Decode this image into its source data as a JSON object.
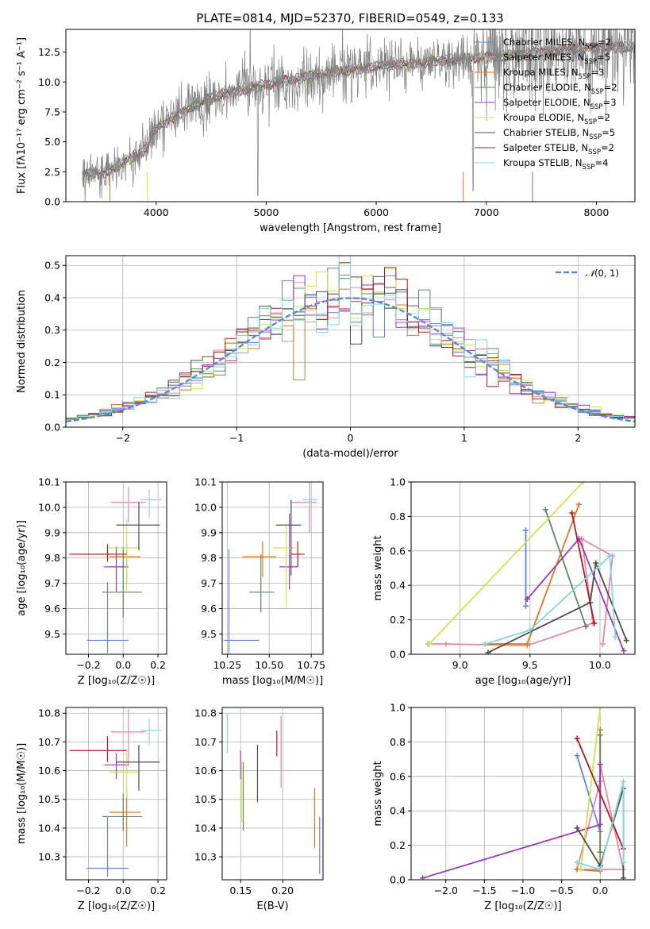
{
  "figure": {
    "title": "PLATE=0814, MJD=52370, FIBERID=0549, z=0.133"
  },
  "models": [
    {
      "label": "Chabrier MILES, N$_{SSP}$=2",
      "legend": "Chabrier MILES, N",
      "sub": "SSP",
      "eq": "=2",
      "color": "#5e87d6"
    },
    {
      "label": "Salpeter MILES, N$_{SSP}$=5",
      "legend": "Salpeter MILES, N",
      "sub": "SSP",
      "eq": "=5",
      "color": "#ea86a8"
    },
    {
      "label": "Kroupa MILES, N$_{SSP}$=3",
      "legend": "Kroupa MILES, N",
      "sub": "SSP",
      "eq": "=3",
      "color": "#de7722"
    },
    {
      "label": "Chabrier ELODIE, N$_{SSP}$=2",
      "legend": "Chabrier ELODIE, N",
      "sub": "SSP",
      "eq": "=2",
      "color": "#5a8a5c"
    },
    {
      "label": "Salpeter ELODIE, N$_{SSP}$=3",
      "legend": "Salpeter ELODIE, N",
      "sub": "SSP",
      "eq": "=3",
      "color": "#9b36b8"
    },
    {
      "label": "Kroupa ELODIE, N$_{SSP}$=2",
      "legend": "Kroupa ELODIE, N",
      "sub": "SSP",
      "eq": "=2",
      "color": "#cde54c"
    },
    {
      "label": "Chabrier STELIB, N$_{SSP}$=5",
      "legend": "Chabrier STELIB, N",
      "sub": "SSP",
      "eq": "=5",
      "color": "#4d4d4d"
    },
    {
      "label": "Salpeter STELIB, N$_{SSP}$=2",
      "legend": "Salpeter STELIB, N",
      "sub": "SSP",
      "eq": "=2",
      "color": "#b0191e"
    },
    {
      "label": "Kroupa STELIB, N$_{SSP}$=4",
      "legend": "Kroupa STELIB, N",
      "sub": "SSP",
      "eq": "=4",
      "color": "#7fd9df"
    }
  ],
  "chart_data": [
    {
      "id": "spectrum",
      "type": "line",
      "xlabel": "wavelength [Angstrom, rest frame]",
      "ylabel": "Flux [fλ10⁻¹⁷ erg cm⁻² s⁻¹ A⁻¹]",
      "xlim": [
        3180,
        8350
      ],
      "ylim": [
        0,
        14.4
      ],
      "xticks": [
        4000,
        5000,
        6000,
        7000,
        8000
      ],
      "yticks": [
        0.0,
        2.5,
        5.0,
        7.5,
        10.0,
        12.5
      ],
      "data_color": "#808080",
      "continuum": {
        "x": [
          3330,
          3550,
          3700,
          3900,
          4000,
          4300,
          4600,
          5000,
          5500,
          6000,
          6500,
          7000,
          7500,
          8000
        ],
        "y": [
          2.3,
          2.5,
          3.3,
          4.3,
          6.2,
          7.8,
          9.0,
          9.8,
          10.7,
          11.3,
          11.7,
          12.1,
          12.5,
          12.9
        ]
      },
      "legend_position": "upper right",
      "grid": false
    },
    {
      "id": "residual-histogram",
      "type": "histogram",
      "xlabel": "(data-model)/error",
      "ylabel": "Normed distribution",
      "xlim": [
        -2.5,
        2.5
      ],
      "ylim": [
        0,
        0.53
      ],
      "xticks": [
        -2,
        -1,
        0,
        1,
        2
      ],
      "yticks": [
        0.0,
        0.1,
        0.2,
        0.3,
        0.4,
        0.5
      ],
      "bin_width": 0.1,
      "reference": {
        "label": "$\\mathcal{N}(0,1)$",
        "mean": 0,
        "sigma": 1,
        "color": "#5e87d6",
        "style": "dashed"
      },
      "legend_position": "upper right",
      "grid": true
    },
    {
      "id": "age-vs-metallicity",
      "type": "errorbar",
      "xlabel": "Z [log₁₀(Z/Z☉)]",
      "ylabel": "age  [log₁₀(age/yr)]",
      "xlim": [
        -0.33,
        0.25
      ],
      "ylim": [
        9.42,
        10.1
      ],
      "xticks": [
        -0.2,
        0.0,
        0.2
      ],
      "yticks": [
        9.5,
        9.6,
        9.7,
        9.8,
        9.9,
        10.0,
        10.1
      ],
      "points": [
        {
          "x": -0.09,
          "xerr": [
            0.12,
            0.12
          ],
          "y": 9.475,
          "yerr": [
            0.05,
            0.23
          ]
        },
        {
          "x": 0.03,
          "xerr": [
            0.1,
            0.1
          ],
          "y": 10.02,
          "yerr": [
            0.08,
            0.06
          ]
        },
        {
          "x": 0.02,
          "xerr": [
            0.1,
            0.08
          ],
          "y": 9.805,
          "yerr": [
            0.11,
            0.05
          ]
        },
        {
          "x": 0.0,
          "xerr": [
            0.12,
            0.11
          ],
          "y": 9.665,
          "yerr": [
            0.1,
            0.18
          ]
        },
        {
          "x": -0.04,
          "xerr": [
            0.07,
            0.07
          ],
          "y": 9.765,
          "yerr": [
            0.1,
            0.08
          ]
        },
        {
          "x": 0.02,
          "xerr": [
            0.1,
            0.08
          ],
          "y": 9.84,
          "yerr": [
            0.18,
            0.11
          ]
        },
        {
          "x": 0.09,
          "xerr": [
            0.13,
            0.12
          ],
          "y": 9.93,
          "yerr": [
            0.1,
            0.09
          ]
        },
        {
          "x": -0.09,
          "xerr": [
            0.22,
            0.11
          ],
          "y": 9.815,
          "yerr": [
            0.03,
            0.04
          ]
        },
        {
          "x": 0.15,
          "xerr": [
            0.05,
            0.07
          ],
          "y": 10.03,
          "yerr": [
            0.07,
            0.04
          ]
        }
      ],
      "grid": true
    },
    {
      "id": "age-vs-mass",
      "type": "errorbar",
      "xlabel": "mass [log₁₀(M/M☉)]",
      "ylabel": "",
      "xlim": [
        10.22,
        10.82
      ],
      "ylim": [
        9.42,
        10.1
      ],
      "xticks": [
        10.25,
        10.5,
        10.75
      ],
      "yticks": [
        9.5,
        9.6,
        9.7,
        9.8,
        9.9,
        10.0,
        10.1
      ],
      "points": [
        {
          "x": 10.26,
          "xerr": [
            0.03,
            0.18
          ],
          "y": 9.475,
          "yerr": [
            0.05,
            0.36
          ]
        },
        {
          "x": 10.74,
          "xerr": [
            0.11,
            0.04
          ],
          "y": 10.02,
          "yerr": [
            0.12,
            0.08
          ]
        },
        {
          "x": 10.46,
          "xerr": [
            0.12,
            0.08
          ],
          "y": 9.805,
          "yerr": [
            0.08,
            0.06
          ]
        },
        {
          "x": 10.45,
          "xerr": [
            0.07,
            0.08
          ],
          "y": 9.665,
          "yerr": [
            0.08,
            0.15
          ]
        },
        {
          "x": 10.62,
          "xerr": [
            0.06,
            0.05
          ],
          "y": 9.765,
          "yerr": [
            0.09,
            0.21
          ]
        },
        {
          "x": 10.6,
          "xerr": [
            0.08,
            0.06
          ],
          "y": 9.84,
          "yerr": [
            0.24,
            0.09
          ]
        },
        {
          "x": 10.63,
          "xerr": [
            0.09,
            0.06
          ],
          "y": 9.93,
          "yerr": [
            0.2,
            0.1
          ]
        },
        {
          "x": 10.67,
          "xerr": [
            0.04,
            0.04
          ],
          "y": 9.815,
          "yerr": [
            0.05,
            0.05
          ]
        },
        {
          "x": 10.74,
          "xerr": [
            0.04,
            0.05
          ],
          "y": 10.03,
          "yerr": [
            0.02,
            0.04
          ]
        }
      ],
      "grid": true
    },
    {
      "id": "mass-weight-vs-age",
      "type": "line",
      "xlabel": "age  [log₁₀(age/yr)]",
      "ylabel": "mass weight",
      "xlim": [
        8.65,
        10.25
      ],
      "ylim": [
        0,
        1
      ],
      "xticks": [
        9.0,
        9.5,
        10.0
      ],
      "yticks": [
        0.0,
        0.2,
        0.4,
        0.6,
        0.8,
        1.0
      ],
      "series": [
        {
          "x": [
            9.47,
            9.47
          ],
          "y": [
            0.28,
            0.72
          ]
        },
        {
          "x": [
            8.77,
            8.9,
            9.48,
            9.95,
            9.87,
            10.09,
            10.02
          ],
          "y": [
            0.06,
            0.06,
            0.05,
            0.18,
            0.67,
            0.57,
            0.06
          ]
        },
        {
          "x": [
            9.18,
            9.48,
            9.85
          ],
          "y": [
            0.06,
            0.06,
            0.87
          ]
        },
        {
          "x": [
            9.61,
            9.9
          ],
          "y": [
            0.84,
            0.16
          ]
        },
        {
          "x": [
            9.48,
            9.85,
            10.17
          ],
          "y": [
            0.32,
            0.67,
            0.02
          ]
        },
        {
          "x": [
            8.78,
            9.88
          ],
          "y": [
            0.06,
            1.0
          ]
        },
        {
          "x": [
            9.2,
            9.93,
            9.97,
            10.19
          ],
          "y": [
            0.01,
            0.3,
            0.53,
            0.08
          ]
        },
        {
          "x": [
            9.8,
            9.96
          ],
          "y": [
            0.82,
            0.18
          ]
        },
        {
          "x": [
            9.18,
            9.5,
            10.07,
            10.11
          ],
          "y": [
            0.06,
            0.14,
            0.57,
            0.1
          ]
        }
      ],
      "grid": true
    },
    {
      "id": "mass-vs-metallicity",
      "type": "errorbar",
      "xlabel": "Z [log₁₀(Z/Z☉)]",
      "ylabel": "mass [log₁₀(M/M☉)]",
      "xlim": [
        -0.33,
        0.25
      ],
      "ylim": [
        10.22,
        10.82
      ],
      "xticks": [
        -0.2,
        0.0,
        0.2
      ],
      "yticks": [
        10.3,
        10.4,
        10.5,
        10.6,
        10.7,
        10.8
      ],
      "points": [
        {
          "x": -0.09,
          "xerr": [
            0.12,
            0.12
          ],
          "y": 10.26,
          "yerr": [
            0.03,
            0.18
          ]
        },
        {
          "x": 0.03,
          "xerr": [
            0.1,
            0.1
          ],
          "y": 10.735,
          "yerr": [
            0.12,
            0.08
          ]
        },
        {
          "x": 0.02,
          "xerr": [
            0.1,
            0.08
          ],
          "y": 10.455,
          "yerr": [
            0.12,
            0.08
          ]
        },
        {
          "x": 0.0,
          "xerr": [
            0.12,
            0.11
          ],
          "y": 10.44,
          "yerr": [
            0.05,
            0.08
          ]
        },
        {
          "x": -0.04,
          "xerr": [
            0.07,
            0.07
          ],
          "y": 10.62,
          "yerr": [
            0.05,
            0.04
          ]
        },
        {
          "x": 0.02,
          "xerr": [
            0.1,
            0.08
          ],
          "y": 10.595,
          "yerr": [
            0.09,
            0.07
          ]
        },
        {
          "x": 0.09,
          "xerr": [
            0.13,
            0.12
          ],
          "y": 10.63,
          "yerr": [
            0.1,
            0.06
          ]
        },
        {
          "x": -0.09,
          "xerr": [
            0.22,
            0.11
          ],
          "y": 10.67,
          "yerr": [
            0.04,
            0.05
          ]
        },
        {
          "x": 0.15,
          "xerr": [
            0.05,
            0.07
          ],
          "y": 10.74,
          "yerr": [
            0.05,
            0.04
          ]
        }
      ],
      "grid": true
    },
    {
      "id": "mass-vs-extinction",
      "type": "errorbar",
      "xlabel": "E(B-V)",
      "ylabel": "",
      "xlim": [
        0.128,
        0.248
      ],
      "ylim": [
        10.22,
        10.82
      ],
      "xticks": [
        0.15,
        0.2
      ],
      "yticks": [
        10.3,
        10.4,
        10.5,
        10.6,
        10.7,
        10.8
      ],
      "points": [
        {
          "x": 0.244,
          "xerr": [
            0,
            0
          ],
          "y": 10.34,
          "yerr": [
            0.1,
            0.1
          ]
        },
        {
          "x": 0.198,
          "xerr": [
            0,
            0
          ],
          "y": 10.67,
          "yerr": [
            0.13,
            0.12
          ]
        },
        {
          "x": 0.238,
          "xerr": [
            0,
            0
          ],
          "y": 10.44,
          "yerr": [
            0.11,
            0.1
          ]
        },
        {
          "x": 0.153,
          "xerr": [
            0,
            0
          ],
          "y": 10.5,
          "yerr": [
            0.11,
            0.13
          ]
        },
        {
          "x": 0.15,
          "xerr": [
            0,
            0
          ],
          "y": 10.62,
          "yerr": [
            0.05,
            0.05
          ]
        },
        {
          "x": 0.151,
          "xerr": [
            0,
            0
          ],
          "y": 10.52,
          "yerr": [
            0.1,
            0.11
          ]
        },
        {
          "x": 0.17,
          "xerr": [
            0,
            0
          ],
          "y": 10.59,
          "yerr": [
            0.1,
            0.1
          ]
        },
        {
          "x": 0.193,
          "xerr": [
            0,
            0
          ],
          "y": 10.69,
          "yerr": [
            0.04,
            0.05
          ]
        },
        {
          "x": 0.134,
          "xerr": [
            0,
            0
          ],
          "y": 10.72,
          "yerr": [
            0.06,
            0.08
          ]
        }
      ],
      "grid": true
    },
    {
      "id": "mass-weight-vs-metallicity",
      "type": "line",
      "xlabel": "Z [log₁₀(Z/Z☉)]",
      "ylabel": "mass weight",
      "xlim": [
        -2.45,
        0.45
      ],
      "ylim": [
        0,
        1
      ],
      "xticks": [
        -2.0,
        -1.5,
        -1.0,
        -0.5,
        0.0
      ],
      "yticks": [
        0.0,
        0.2,
        0.4,
        0.6,
        0.8,
        1.0
      ],
      "series": [
        {
          "x": [
            -0.3,
            0.0
          ],
          "y": [
            0.72,
            0.28
          ]
        },
        {
          "x": [
            -0.3,
            0.3,
            0.0,
            0.0,
            -0.3
          ],
          "y": [
            0.06,
            0.06,
            0.67,
            0.57,
            0.06
          ]
        },
        {
          "x": [
            -0.3,
            0.0,
            0.0
          ],
          "y": [
            0.06,
            0.05,
            0.87
          ]
        },
        {
          "x": [
            0.0,
            0.0
          ],
          "y": [
            0.84,
            0.16
          ]
        },
        {
          "x": [
            -2.3,
            0.0,
            0.0
          ],
          "y": [
            0.01,
            0.32,
            0.67
          ]
        },
        {
          "x": [
            -0.25,
            0.0
          ],
          "y": [
            0.06,
            1.0
          ]
        },
        {
          "x": [
            0.3,
            0.3,
            0.0,
            -0.3
          ],
          "y": [
            0.01,
            0.53,
            0.08,
            0.3
          ]
        },
        {
          "x": [
            -0.3,
            0.3
          ],
          "y": [
            0.82,
            0.18
          ]
        },
        {
          "x": [
            -0.3,
            0.0,
            0.3,
            0.3
          ],
          "y": [
            0.1,
            0.06,
            0.57,
            0.1
          ]
        }
      ],
      "grid": true
    }
  ]
}
